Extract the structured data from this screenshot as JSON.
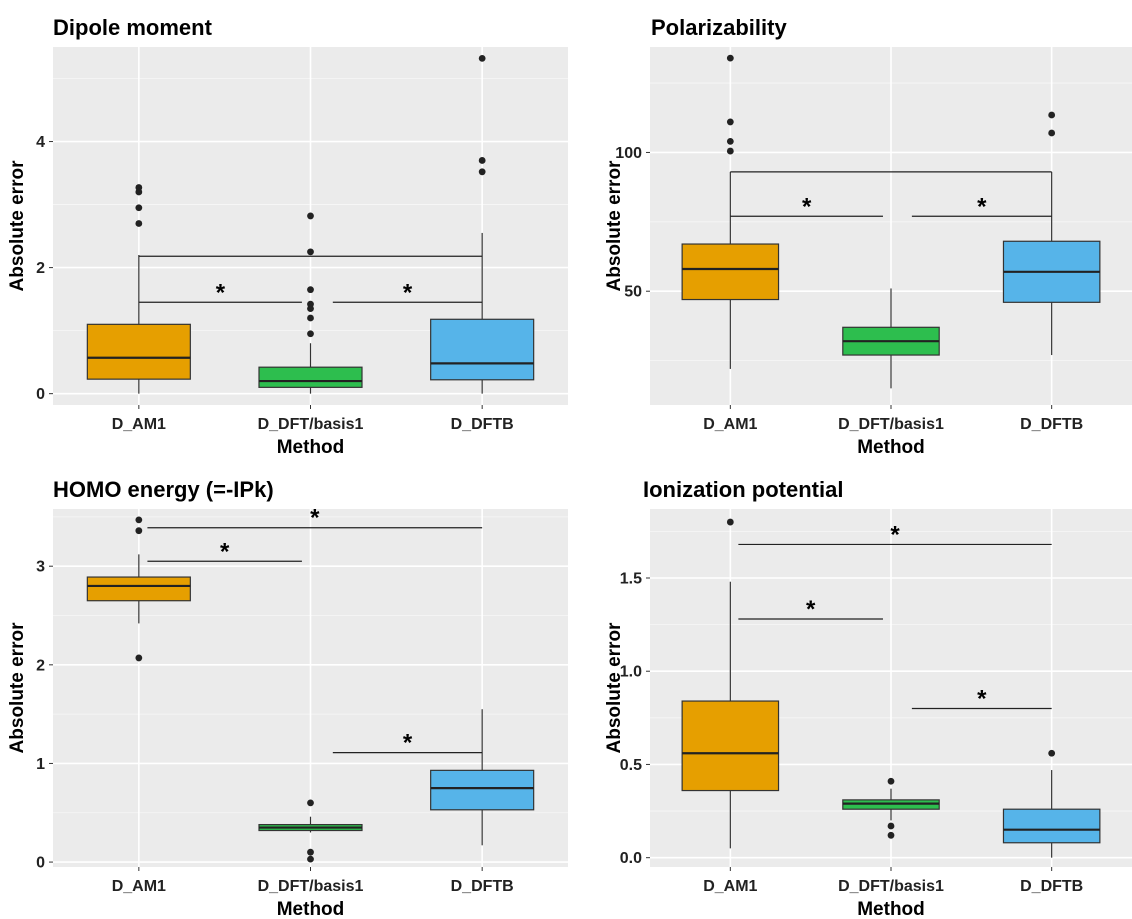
{
  "chart_data": [
    {
      "type": "box",
      "title": "Dipole moment",
      "xlabel": "Method",
      "ylabel": "Absolute error",
      "ylim": [
        -0.18,
        5.5
      ],
      "yticks": [
        0,
        2,
        4
      ],
      "categories": [
        "D_AM1",
        "D_DFT/basis1",
        "D_DFTB"
      ],
      "colors": [
        "#E69F00",
        "#2DBE4E",
        "#56B4E9"
      ],
      "boxes": [
        {
          "whisker_low": 0.0,
          "q1": 0.23,
          "median": 0.57,
          "q3": 1.1,
          "whisker_high": 2.2,
          "outliers": [
            2.7,
            2.95,
            3.2,
            3.27
          ]
        },
        {
          "whisker_low": 0.0,
          "q1": 0.1,
          "median": 0.2,
          "q3": 0.42,
          "whisker_high": 0.8,
          "outliers": [
            0.95,
            1.2,
            1.35,
            1.42,
            1.65,
            2.25,
            2.82
          ]
        },
        {
          "whisker_low": 0.0,
          "q1": 0.22,
          "median": 0.48,
          "q3": 1.18,
          "whisker_high": 2.55,
          "outliers": [
            3.52,
            3.7,
            5.32
          ]
        }
      ],
      "brackets": [
        {
          "from": 0,
          "to": 2,
          "y": 2.18,
          "label": ""
        },
        {
          "from": 0,
          "to": 0.95,
          "y": 1.45,
          "label": "*"
        },
        {
          "from": 1.13,
          "to": 2,
          "y": 1.45,
          "label": "*"
        }
      ]
    },
    {
      "type": "box",
      "title": "Polarizability",
      "xlabel": "Method",
      "ylabel": "Absolute error",
      "ylim": [
        9,
        138
      ],
      "yticks": [
        50,
        100
      ],
      "categories": [
        "D_AM1",
        "D_DFT/basis1",
        "D_DFTB"
      ],
      "colors": [
        "#E69F00",
        "#2DBE4E",
        "#56B4E9"
      ],
      "boxes": [
        {
          "whisker_low": 22,
          "q1": 47,
          "median": 58,
          "q3": 67,
          "whisker_high": 93,
          "outliers": [
            100.5,
            104,
            111,
            134
          ]
        },
        {
          "whisker_low": 15,
          "q1": 27,
          "median": 32,
          "q3": 37,
          "whisker_high": 51,
          "outliers": []
        },
        {
          "whisker_low": 27,
          "q1": 46,
          "median": 57,
          "q3": 68,
          "whisker_high": 93,
          "outliers": [
            107,
            113.5
          ]
        }
      ],
      "brackets": [
        {
          "from": 0,
          "to": 2,
          "y": 93,
          "label": ""
        },
        {
          "from": 0,
          "to": 0.95,
          "y": 77,
          "label": "*"
        },
        {
          "from": 1.13,
          "to": 2,
          "y": 77,
          "label": "*"
        }
      ]
    },
    {
      "type": "box",
      "title": "HOMO energy (=-IPk)",
      "xlabel": "Method",
      "ylabel": "Absolute error",
      "ylim": [
        -0.05,
        3.58
      ],
      "yticks": [
        0,
        1,
        2,
        3
      ],
      "categories": [
        "D_AM1",
        "D_DFT/basis1",
        "D_DFTB"
      ],
      "colors": [
        "#E69F00",
        "#2DBE4E",
        "#56B4E9"
      ],
      "boxes": [
        {
          "whisker_low": 2.42,
          "q1": 2.65,
          "median": 2.8,
          "q3": 2.89,
          "whisker_high": 3.12,
          "outliers": [
            2.07,
            3.36,
            3.47
          ]
        },
        {
          "whisker_low": 0.3,
          "q1": 0.32,
          "median": 0.35,
          "q3": 0.38,
          "whisker_high": 0.46,
          "outliers": [
            0.03,
            0.1,
            0.6
          ]
        },
        {
          "whisker_low": 0.17,
          "q1": 0.53,
          "median": 0.75,
          "q3": 0.93,
          "whisker_high": 1.55,
          "outliers": []
        }
      ],
      "brackets": [
        {
          "from": 0.05,
          "to": 2,
          "y": 3.39,
          "label": "*"
        },
        {
          "from": 0.05,
          "to": 0.95,
          "y": 3.05,
          "label": "*"
        },
        {
          "from": 1.13,
          "to": 2,
          "y": 1.11,
          "label": "*"
        }
      ]
    },
    {
      "type": "box",
      "title": "Ionization potential",
      "xlabel": "Method",
      "ylabel": "Absolute error",
      "ylim": [
        -0.05,
        1.87
      ],
      "yticks": [
        0.0,
        0.5,
        1.0,
        1.5
      ],
      "yticklabels": [
        "0.0",
        "0.5",
        "1.0",
        "1.5"
      ],
      "categories": [
        "D_AM1",
        "D_DFT/basis1",
        "D_DFTB"
      ],
      "colors": [
        "#E69F00",
        "#2DBE4E",
        "#56B4E9"
      ],
      "boxes": [
        {
          "whisker_low": 0.05,
          "q1": 0.36,
          "median": 0.56,
          "q3": 0.84,
          "whisker_high": 1.48,
          "outliers": [
            1.8
          ]
        },
        {
          "whisker_low": 0.2,
          "q1": 0.26,
          "median": 0.29,
          "q3": 0.31,
          "whisker_high": 0.37,
          "outliers": [
            0.12,
            0.17,
            0.41
          ]
        },
        {
          "whisker_low": 0.0,
          "q1": 0.08,
          "median": 0.15,
          "q3": 0.26,
          "whisker_high": 0.47,
          "outliers": [
            0.56
          ]
        }
      ],
      "brackets": [
        {
          "from": 0.05,
          "to": 2,
          "y": 1.68,
          "label": "*"
        },
        {
          "from": 0.05,
          "to": 0.95,
          "y": 1.28,
          "label": "*"
        },
        {
          "from": 1.13,
          "to": 2,
          "y": 0.8,
          "label": "*"
        }
      ]
    }
  ]
}
